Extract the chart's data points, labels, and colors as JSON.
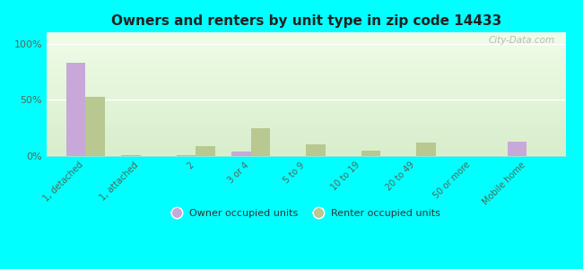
{
  "title": "Owners and renters by unit type in zip code 14433",
  "categories": [
    "1, detached",
    "1, attached",
    "2",
    "3 or 4",
    "5 to 9",
    "10 to 19",
    "20 to 49",
    "50 or more",
    "Mobile home"
  ],
  "owner_values": [
    83,
    1,
    1,
    4,
    0,
    0,
    0,
    0,
    13
  ],
  "renter_values": [
    53,
    0,
    9,
    25,
    10,
    5,
    12,
    0,
    0
  ],
  "owner_color": "#c8a8d8",
  "renter_color": "#b8c890",
  "outer_bg": "#00ffff",
  "yticks": [
    0,
    50,
    100
  ],
  "ylim": [
    0,
    110
  ],
  "bar_width": 0.35,
  "watermark": "City-Data.com",
  "legend_owner": "Owner occupied units",
  "legend_renter": "Renter occupied units",
  "grad_top_color": "#f0fce8",
  "grad_bottom_color": "#d8eecc"
}
